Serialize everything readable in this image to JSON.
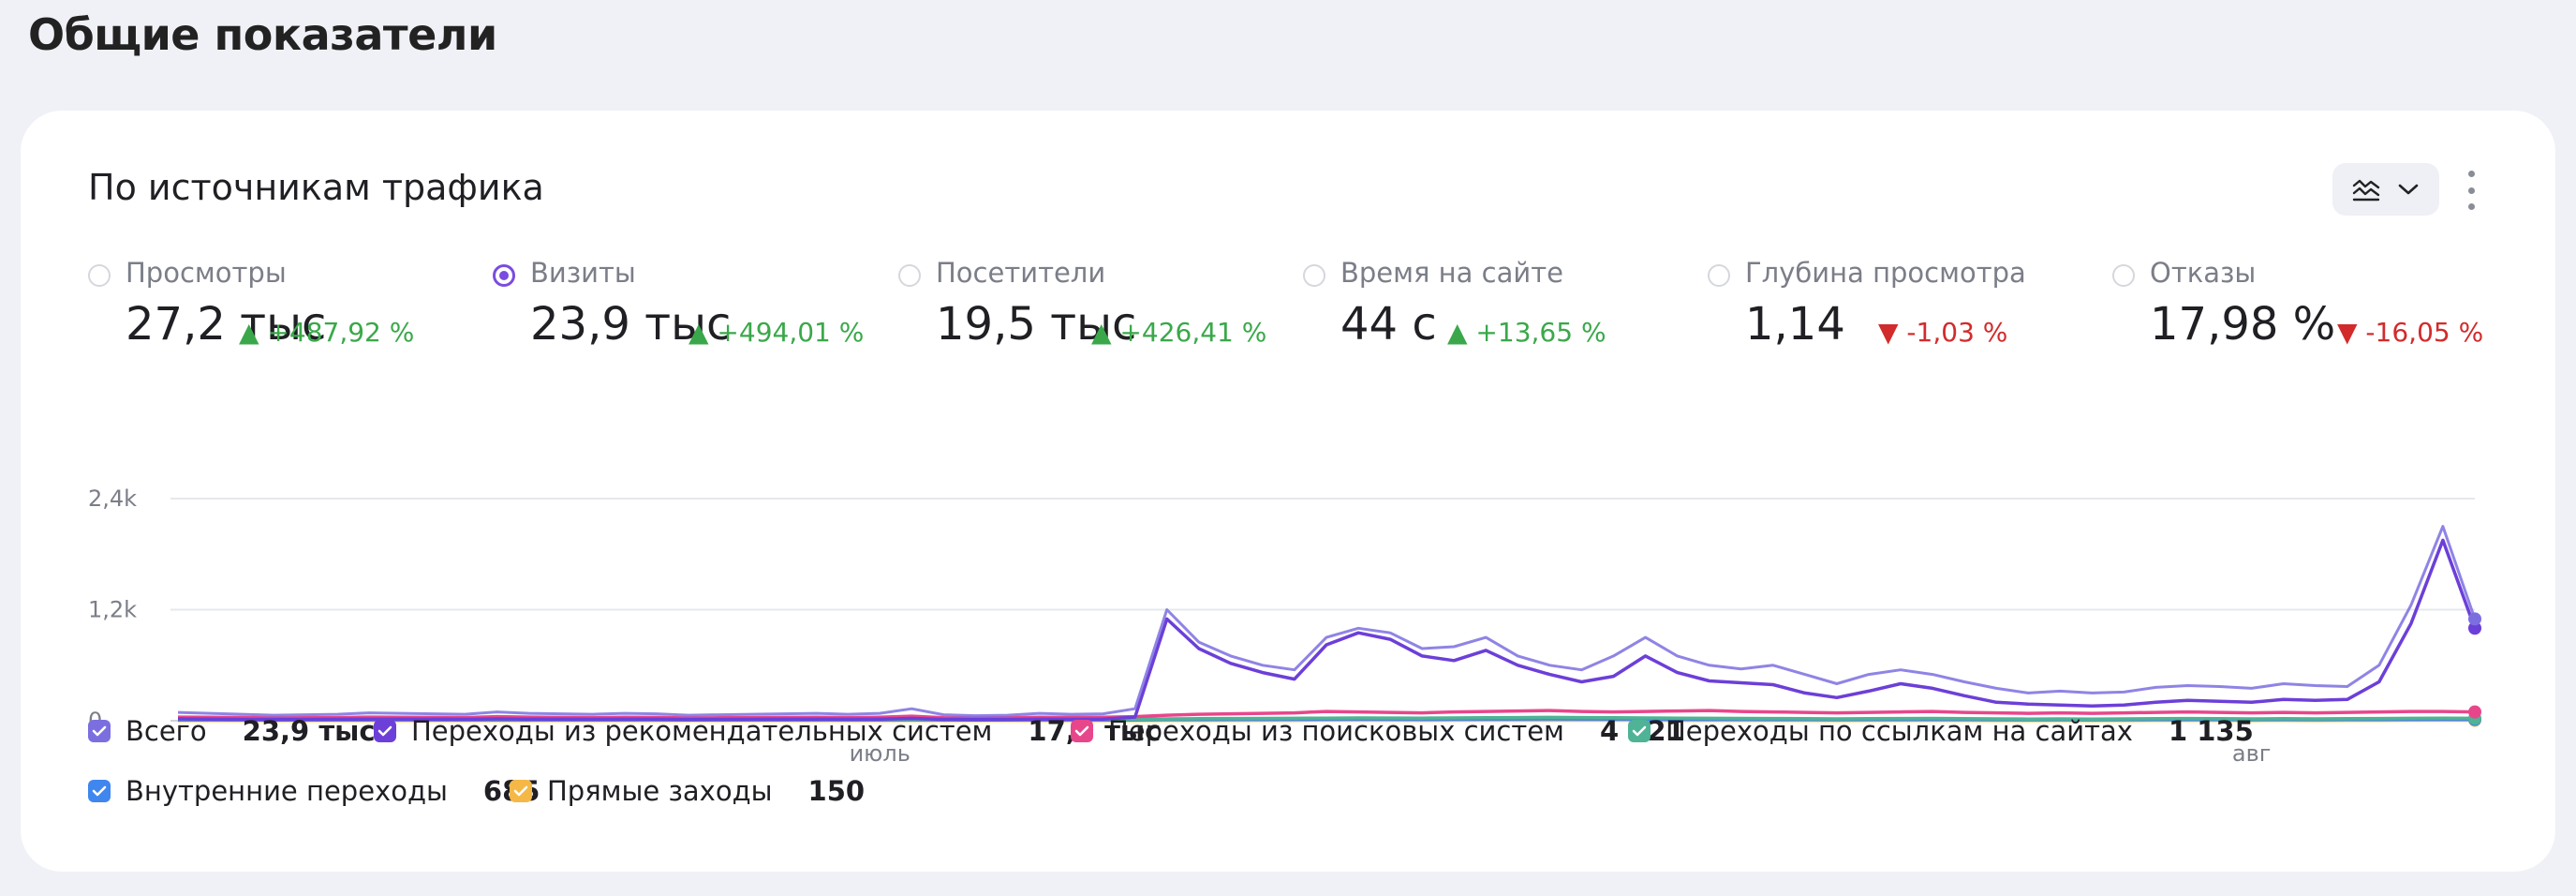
{
  "page": {
    "title": "Общие показатели"
  },
  "card": {
    "title": "По источникам трафика",
    "chart_type_button": {
      "icon": "line-chart-icon",
      "chevron": "chevron-down-icon"
    },
    "more_button": {
      "icon": "more-vertical-icon"
    }
  },
  "metrics": [
    {
      "label": "Просмотры",
      "value": "27,2 тыс",
      "change": "▲ +487,92 %",
      "direction": "up",
      "selected": false
    },
    {
      "label": "Визиты",
      "value": "23,9 тыс",
      "change": "▲ +494,01 %",
      "direction": "up",
      "selected": true
    },
    {
      "label": "Посетители",
      "value": "19,5 тыс",
      "change": "▲ +426,41 %",
      "direction": "up",
      "selected": false
    },
    {
      "label": "Время на сайте",
      "value": "44 с",
      "change": "▲ +13,65 %",
      "direction": "up",
      "selected": false
    },
    {
      "label": "Глубина просмотра",
      "value": "1,14",
      "change": "▼ -1,03 %",
      "direction": "down",
      "selected": false
    },
    {
      "label": "Отказы",
      "value": "17,98 %",
      "change": "▼ -16,05 %",
      "direction": "down",
      "selected": false
    }
  ],
  "legend": [
    {
      "label": "Всего",
      "value": "23,9 тыс",
      "color": "#7b6fe0"
    },
    {
      "label": "Переходы из рекомендательных систем",
      "value": "17,9 тыс",
      "color": "#6c3fd8"
    },
    {
      "label": "Переходы из поисковых систем",
      "value": "4 021",
      "color": "#e8468b"
    },
    {
      "label": "Переходы по ссылкам на сайтах",
      "value": "1 135",
      "color": "#4fb396"
    },
    {
      "label": "Внутренние переходы",
      "value": "685",
      "color": "#3f86ef"
    },
    {
      "label": "Прямые заходы",
      "value": "150",
      "color": "#f5b846"
    }
  ],
  "chart_data": {
    "type": "line",
    "y_tick_labels": [
      "2,4k",
      "1,2k",
      "0"
    ],
    "y_ticks": [
      2400,
      1200,
      0
    ],
    "ylim": [
      0,
      2400
    ],
    "x_tick_labels": [
      {
        "label": "июль",
        "index": 22
      },
      {
        "label": "авг",
        "index": 65
      }
    ],
    "grid": true,
    "series": [
      {
        "name": "Всего",
        "color": "#7b6fe0",
        "values": [
          90,
          80,
          70,
          60,
          65,
          70,
          85,
          80,
          75,
          70,
          95,
          80,
          75,
          70,
          80,
          75,
          60,
          65,
          70,
          75,
          80,
          70,
          80,
          130,
          65,
          55,
          60,
          80,
          70,
          75,
          130,
          1200,
          850,
          700,
          600,
          550,
          900,
          1000,
          950,
          780,
          800,
          900,
          700,
          600,
          550,
          700,
          900,
          700,
          600,
          560,
          600,
          500,
          400,
          500,
          550,
          500,
          420,
          350,
          300,
          320,
          300,
          310,
          360,
          380,
          370,
          350,
          400,
          380,
          370,
          600,
          1250,
          2100,
          1100
        ]
      },
      {
        "name": "Переходы из рекомендательных систем",
        "color": "#6c3fd8",
        "values": [
          20,
          18,
          15,
          14,
          15,
          16,
          18,
          18,
          17,
          16,
          20,
          18,
          17,
          16,
          18,
          17,
          14,
          15,
          16,
          17,
          18,
          16,
          18,
          25,
          15,
          13,
          14,
          18,
          16,
          17,
          40,
          1100,
          780,
          620,
          520,
          450,
          820,
          950,
          880,
          700,
          650,
          760,
          600,
          500,
          420,
          480,
          700,
          520,
          430,
          410,
          390,
          300,
          250,
          320,
          400,
          350,
          270,
          200,
          180,
          170,
          160,
          170,
          200,
          220,
          210,
          200,
          230,
          220,
          230,
          420,
          1050,
          1950,
          1000
        ]
      },
      {
        "name": "Переходы из поисковых систем",
        "color": "#e8468b",
        "values": [
          40,
          38,
          35,
          30,
          32,
          34,
          40,
          38,
          36,
          34,
          45,
          40,
          36,
          34,
          38,
          36,
          30,
          32,
          34,
          36,
          38,
          34,
          38,
          50,
          32,
          30,
          32,
          38,
          36,
          38,
          45,
          60,
          70,
          75,
          80,
          85,
          100,
          95,
          90,
          85,
          95,
          100,
          105,
          110,
          100,
          95,
          100,
          105,
          110,
          100,
          95,
          90,
          85,
          90,
          95,
          100,
          90,
          85,
          80,
          85,
          80,
          85,
          90,
          95,
          90,
          85,
          90,
          85,
          90,
          95,
          100,
          100,
          95
        ]
      },
      {
        "name": "Переходы по ссылкам на сайтах",
        "color": "#4fb396",
        "values": [
          15,
          14,
          13,
          12,
          13,
          14,
          15,
          15,
          14,
          13,
          16,
          15,
          14,
          13,
          15,
          14,
          12,
          13,
          14,
          15,
          15,
          13,
          15,
          18,
          12,
          12,
          13,
          15,
          14,
          15,
          16,
          20,
          22,
          24,
          25,
          26,
          28,
          30,
          29,
          28,
          30,
          32,
          34,
          36,
          34,
          32,
          30,
          28,
          26,
          25,
          24,
          22,
          20,
          22,
          24,
          25,
          22,
          20,
          18,
          20,
          18,
          20,
          22,
          24,
          22,
          20,
          22,
          20,
          22,
          24,
          26,
          28,
          26
        ]
      },
      {
        "name": "Внутренние переходы",
        "color": "#3f86ef",
        "values": [
          8,
          8,
          7,
          7,
          7,
          8,
          8,
          8,
          8,
          7,
          9,
          8,
          8,
          7,
          8,
          8,
          7,
          7,
          8,
          8,
          8,
          7,
          8,
          10,
          7,
          7,
          7,
          8,
          8,
          8,
          9,
          12,
          13,
          14,
          14,
          15,
          16,
          17,
          16,
          15,
          16,
          17,
          18,
          19,
          18,
          17,
          16,
          15,
          14,
          14,
          13,
          12,
          11,
          12,
          13,
          14,
          12,
          11,
          10,
          11,
          10,
          11,
          12,
          13,
          12,
          11,
          12,
          11,
          12,
          13,
          14,
          15,
          14
        ]
      },
      {
        "name": "Прямые заходы",
        "color": "#f5b846",
        "values": [
          3,
          3,
          3,
          2,
          3,
          3,
          3,
          3,
          3,
          3,
          3,
          3,
          3,
          3,
          3,
          3,
          2,
          3,
          3,
          3,
          3,
          3,
          3,
          4,
          3,
          2,
          3,
          3,
          3,
          3,
          3,
          4,
          4,
          4,
          4,
          4,
          5,
          5,
          5,
          4,
          5,
          5,
          5,
          5,
          5,
          5,
          5,
          4,
          4,
          4,
          4,
          4,
          3,
          4,
          4,
          4,
          4,
          3,
          3,
          3,
          3,
          3,
          4,
          4,
          4,
          3,
          4,
          3,
          4,
          4,
          5,
          5,
          5
        ]
      }
    ]
  }
}
